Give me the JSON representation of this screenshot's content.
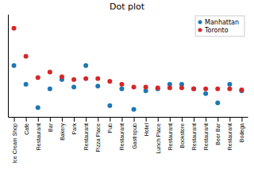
{
  "chart_data": {
    "type": "scatter",
    "title": "Dot plot",
    "categories": [
      "Ice Cream Shop",
      "Café",
      "Restaurant",
      "Bar",
      "Bakery",
      "Park",
      "Restaurant",
      "Pizza Place",
      "Pub",
      "Restaurant",
      "Gastropub",
      "Hotel",
      "Lunch Place",
      "Restaurant",
      "Bookstore",
      "Restaurant",
      "Restaurant",
      "Beer Bar",
      "Restaurant",
      "Bodega"
    ],
    "series": [
      {
        "name": "Manhattan",
        "color": "#1f77b4",
        "values": [
          0.065,
          0.045,
          0.02,
          0.04,
          0.05,
          0.042,
          0.065,
          0.043,
          0.022,
          0.04,
          0.018,
          0.038,
          0.04,
          0.045,
          0.045,
          0.04,
          0.035,
          0.025,
          0.045,
          0.038
        ]
      },
      {
        "name": "Toronto",
        "color": "#d62728",
        "values": [
          0.105,
          0.075,
          0.052,
          0.058,
          0.053,
          0.05,
          0.051,
          0.051,
          0.048,
          0.045,
          0.042,
          0.042,
          0.041,
          0.041,
          0.041,
          0.04,
          0.04,
          0.04,
          0.04,
          0.039
        ]
      }
    ],
    "ylim": [
      0.01,
      0.12
    ],
    "legend": "upper right",
    "tick_labels": "x"
  }
}
